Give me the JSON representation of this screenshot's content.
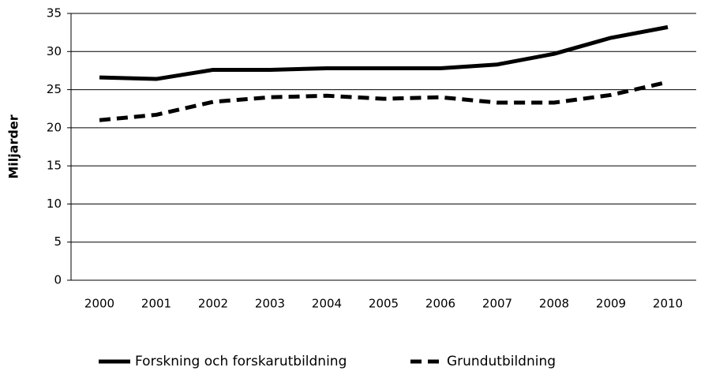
{
  "chart_data": {
    "type": "line",
    "y_label": "Miljarder",
    "categories": [
      "2000",
      "2001",
      "2002",
      "2003",
      "2004",
      "2005",
      "2006",
      "2007",
      "2008",
      "2009",
      "2010"
    ],
    "series": [
      {
        "name": "Forskning och forskarutbildning",
        "color": "#000000",
        "style": "solid",
        "values": [
          26.6,
          26.4,
          27.6,
          27.6,
          27.8,
          27.8,
          27.8,
          28.3,
          29.7,
          31.8,
          33.2
        ]
      },
      {
        "name": "Grundutbildning",
        "color": "#000000",
        "style": "dashed",
        "values": [
          21.0,
          21.7,
          23.4,
          24.0,
          24.2,
          23.8,
          24.0,
          23.3,
          23.3,
          24.3,
          26.0
        ]
      }
    ],
    "ylim": [
      0,
      35
    ],
    "yticks": [
      0,
      5,
      10,
      15,
      20,
      25,
      30,
      35
    ],
    "grid": true,
    "legend": "bottom"
  }
}
